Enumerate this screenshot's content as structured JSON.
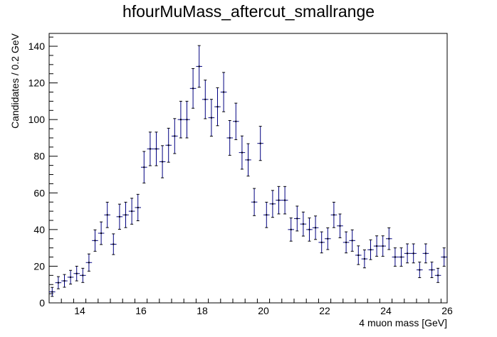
{
  "chart_data": {
    "type": "scatter",
    "title": "hfourMuMass_aftercut_smallrange",
    "xlabel": "4 muon mass [GeV]",
    "ylabel": "Candidates / 0.2 GeV",
    "xlim": [
      13,
      26
    ],
    "ylim": [
      0,
      147
    ],
    "bin_width": 0.2,
    "x_ticks": [
      14,
      16,
      18,
      20,
      22,
      24,
      26
    ],
    "y_ticks": [
      0,
      20,
      40,
      60,
      80,
      100,
      120,
      140
    ],
    "grid": false,
    "legend": "none",
    "marker_color": "#000080",
    "error_bars": "sqrt(N)",
    "x": [
      13.1,
      13.3,
      13.5,
      13.7,
      13.9,
      14.1,
      14.3,
      14.5,
      14.7,
      14.9,
      15.1,
      15.3,
      15.5,
      15.7,
      15.9,
      16.1,
      16.3,
      16.5,
      16.7,
      16.9,
      17.1,
      17.3,
      17.5,
      17.7,
      17.9,
      18.1,
      18.3,
      18.5,
      18.7,
      18.9,
      19.1,
      19.3,
      19.5,
      19.7,
      19.9,
      20.1,
      20.3,
      20.5,
      20.7,
      20.9,
      21.1,
      21.3,
      21.5,
      21.7,
      21.9,
      22.1,
      22.3,
      22.5,
      22.7,
      22.9,
      23.1,
      23.3,
      23.5,
      23.7,
      23.9,
      24.1,
      24.3,
      24.5,
      24.7,
      24.9,
      25.1,
      25.3,
      25.5,
      25.7,
      25.9
    ],
    "values": [
      6,
      11,
      12,
      14,
      16,
      15,
      22,
      34,
      38,
      48,
      32,
      47,
      48,
      50,
      52,
      74,
      84,
      84,
      77,
      86,
      91,
      100,
      100,
      117,
      129,
      111,
      101,
      107,
      115,
      90,
      99,
      82,
      78,
      55,
      87,
      48,
      54,
      56,
      56,
      40,
      46,
      43,
      40,
      41,
      33,
      35,
      48,
      42,
      33,
      34,
      26,
      24,
      29,
      31,
      31,
      35,
      25,
      25,
      27,
      27,
      18,
      27,
      18,
      15,
      25
    ]
  }
}
